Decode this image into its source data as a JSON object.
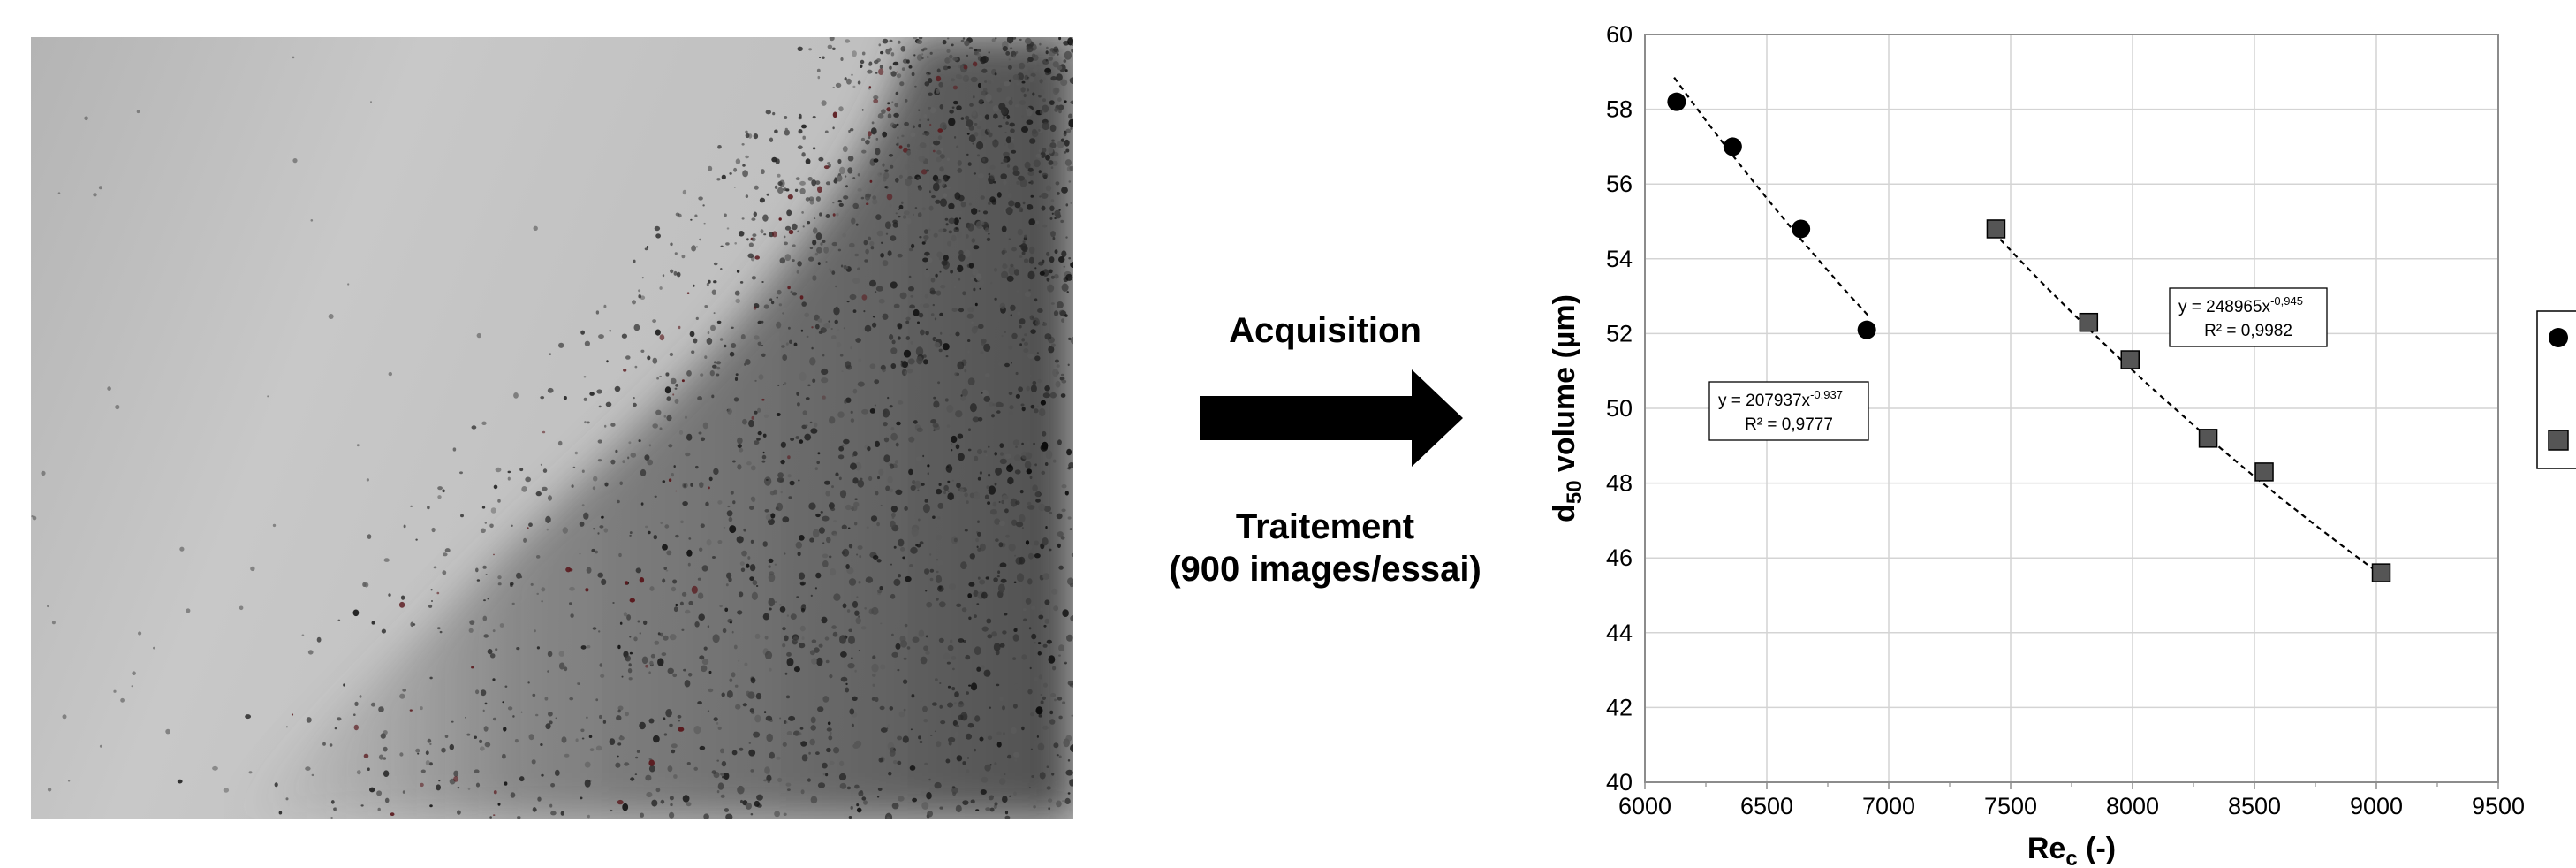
{
  "photo": {
    "subject": "droplet-spray-microscopy-image"
  },
  "flow": {
    "acquisition": "Acquisition",
    "traitement_line1": "Traitement",
    "traitement_line2": "(900 images/essai)"
  },
  "chart_data": {
    "type": "scatter",
    "title": "",
    "xlabel": "Re",
    "xlabel_subscript": "c",
    "xlabel_suffix": " (-)",
    "ylabel": "d",
    "ylabel_subscript": "50",
    "ylabel_suffix": " volume (µm)",
    "xlim": [
      6000,
      9500
    ],
    "ylim": [
      40,
      60
    ],
    "x_ticks": [
      6000,
      6500,
      7000,
      7500,
      8000,
      8500,
      9000,
      9500
    ],
    "y_ticks": [
      40,
      42,
      44,
      46,
      48,
      50,
      52,
      54,
      56,
      58,
      60
    ],
    "grid": true,
    "legend_position": "right (cropped)",
    "series": [
      {
        "marker": "circle",
        "color": "#000000",
        "x": [
          6130,
          6360,
          6640,
          6910
        ],
        "y": [
          58.2,
          57.0,
          54.8,
          52.1
        ],
        "trendline": {
          "label_line1": "y = 207937x",
          "label_exp": "-0,937",
          "label_line2": "R² = 0,9777",
          "coef": 207937,
          "exp": -0.937,
          "x_range": [
            6120,
            6920
          ]
        }
      },
      {
        "marker": "square",
        "color": "#555555",
        "x": [
          7440,
          7820,
          7990,
          8310,
          8540,
          9020
        ],
        "y": [
          54.8,
          52.3,
          51.3,
          49.2,
          48.3,
          45.6
        ],
        "trendline": {
          "label_line1": "y = 248965x",
          "label_exp": "-0,945",
          "label_line2": "R² = 0,9982",
          "coef": 248965,
          "exp": -0.945,
          "x_range": [
            7430,
            9020
          ]
        }
      }
    ]
  }
}
